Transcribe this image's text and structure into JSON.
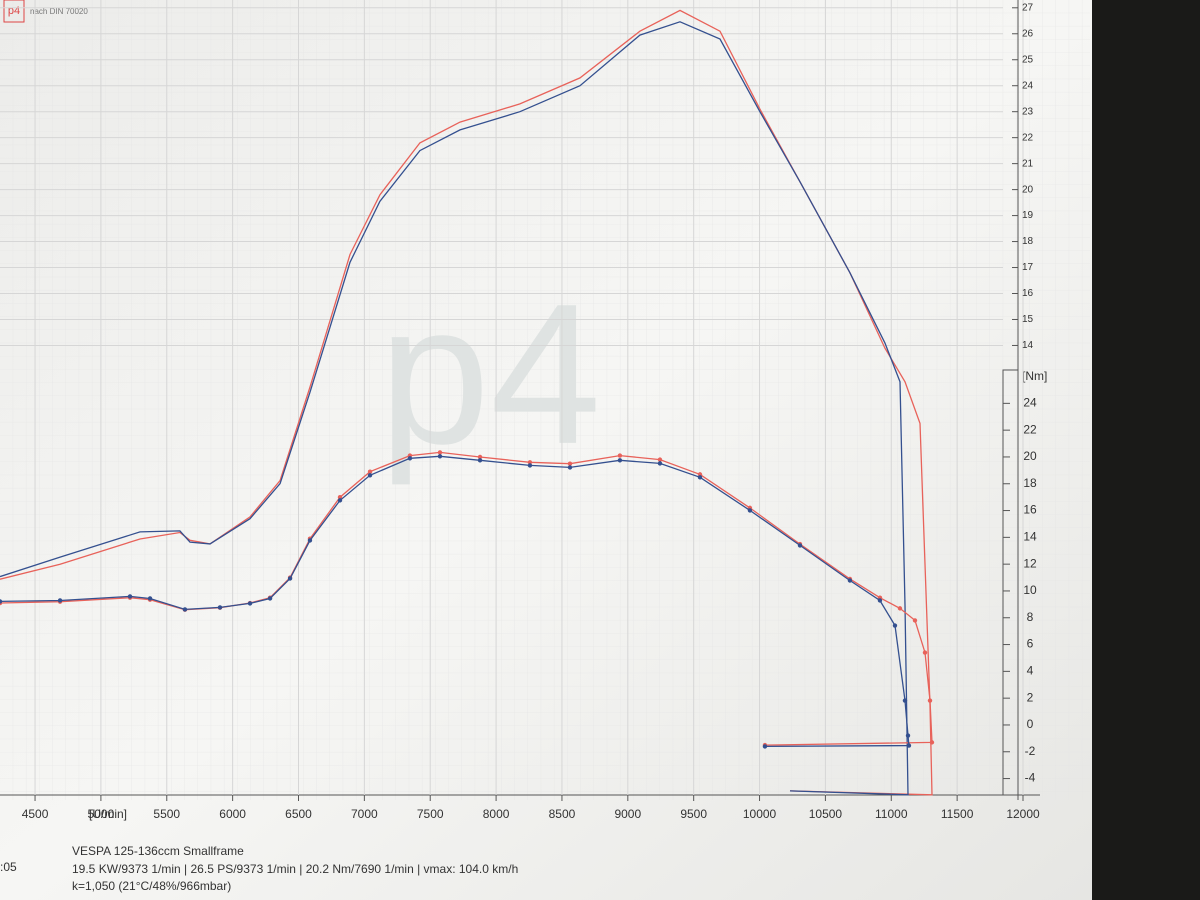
{
  "chart_data": {
    "type": "line",
    "header": "nach DIN 70020",
    "logo": "p4",
    "x_unit": "[U/min]",
    "y2_unit": "[Nm]",
    "title": "VESPA 125-136ccm Smallframe",
    "subtitle": "19.5 KW/9373 1/min | 26.5 PS/9373 1/min | 20.2 Nm/7690 1/min | vmax: 104.0 km/h",
    "conditions": "k=1,050 (21°C/48%/966mbar)",
    "side_note": ":05",
    "xlim": [
      4234,
      12000
    ],
    "xticks": [
      4500,
      5000,
      5500,
      6000,
      6500,
      7000,
      7500,
      8000,
      8500,
      9000,
      9500,
      10000,
      10500,
      11000,
      11500,
      12000
    ],
    "ylim": [
      -3.5,
      27.3
    ],
    "yticks": [
      14,
      15,
      16,
      17,
      18,
      19,
      20,
      21,
      22,
      23,
      24,
      25,
      26,
      27
    ],
    "y2lim": [
      -5.6,
      54.1
    ],
    "y2ticks": [
      -4,
      -2,
      0,
      2,
      4,
      6,
      8,
      10,
      12,
      14,
      16,
      18,
      20,
      22,
      24
    ],
    "grid": true,
    "series": [
      {
        "color": "#e8625a",
        "markers": false,
        "x": [
          4234,
          4690,
          5297,
          5600,
          5676,
          5828,
          6132,
          6360,
          6587,
          6891,
          7118,
          7422,
          7726,
          8181,
          8637,
          9092,
          9396,
          9700,
          10003,
          10307,
          10686,
          10952,
          11104,
          11218,
          11294,
          11309,
          10231
        ],
        "values": [
          5.0,
          5.58,
          6.55,
          6.8,
          6.5,
          6.36,
          7.4,
          8.8,
          12.4,
          17.5,
          19.8,
          21.8,
          22.6,
          23.3,
          24.3,
          26.1,
          26.9,
          26.1,
          23.1,
          20.3,
          16.8,
          13.9,
          12.6,
          11.0,
          0.15,
          -3.3,
          -3.15
        ]
      },
      {
        "color": "#34508f",
        "markers": false,
        "x": [
          4234,
          4690,
          5297,
          5600,
          5676,
          5828,
          6132,
          6360,
          6587,
          6891,
          7118,
          7422,
          7726,
          8181,
          8637,
          9092,
          9396,
          9700,
          10003,
          10307,
          10686,
          10952,
          11066,
          11104,
          11127,
          10231
        ],
        "values": [
          5.1,
          5.85,
          6.82,
          6.86,
          6.43,
          6.36,
          7.33,
          8.68,
          12.2,
          17.2,
          19.55,
          21.5,
          22.3,
          23.0,
          24.0,
          25.95,
          26.46,
          25.8,
          23.0,
          20.3,
          16.8,
          14.1,
          12.6,
          4.0,
          -3.3,
          -3.15
        ]
      },
      {
        "color": "#e8625a",
        "markers": true,
        "axis": "y2",
        "x": [
          4234,
          4690,
          5221,
          5373,
          5638,
          5904,
          6132,
          6284,
          6436,
          6587,
          6815,
          7043,
          7346,
          7574,
          7878,
          8257,
          8561,
          8940,
          9244,
          9548,
          9927,
          10307,
          10686,
          10914,
          11066,
          11180,
          11256,
          11294,
          11309,
          10041
        ],
        "values": [
          9.1,
          9.2,
          9.5,
          9.35,
          8.6,
          8.75,
          9.1,
          9.5,
          11.0,
          13.9,
          17.0,
          18.9,
          20.1,
          20.34,
          20.0,
          19.6,
          19.5,
          20.1,
          19.8,
          18.7,
          16.2,
          13.5,
          10.9,
          9.5,
          8.7,
          7.8,
          5.4,
          1.82,
          -1.3,
          -1.5
        ]
      },
      {
        "color": "#34508f",
        "markers": true,
        "axis": "y2",
        "x": [
          4234,
          4690,
          5221,
          5373,
          5638,
          5904,
          6132,
          6284,
          6436,
          6587,
          6815,
          7043,
          7346,
          7574,
          7878,
          8257,
          8561,
          8940,
          9244,
          9548,
          9927,
          10307,
          10686,
          10914,
          11028,
          11104,
          11127,
          11134,
          10041
        ],
        "values": [
          9.22,
          9.29,
          9.59,
          9.44,
          8.62,
          8.77,
          9.07,
          9.44,
          10.93,
          13.77,
          16.76,
          18.63,
          19.9,
          20.05,
          19.75,
          19.37,
          19.22,
          19.75,
          19.52,
          18.48,
          16.01,
          13.4,
          10.78,
          9.29,
          7.42,
          1.82,
          -0.79,
          -1.54,
          -1.6
        ]
      }
    ]
  }
}
